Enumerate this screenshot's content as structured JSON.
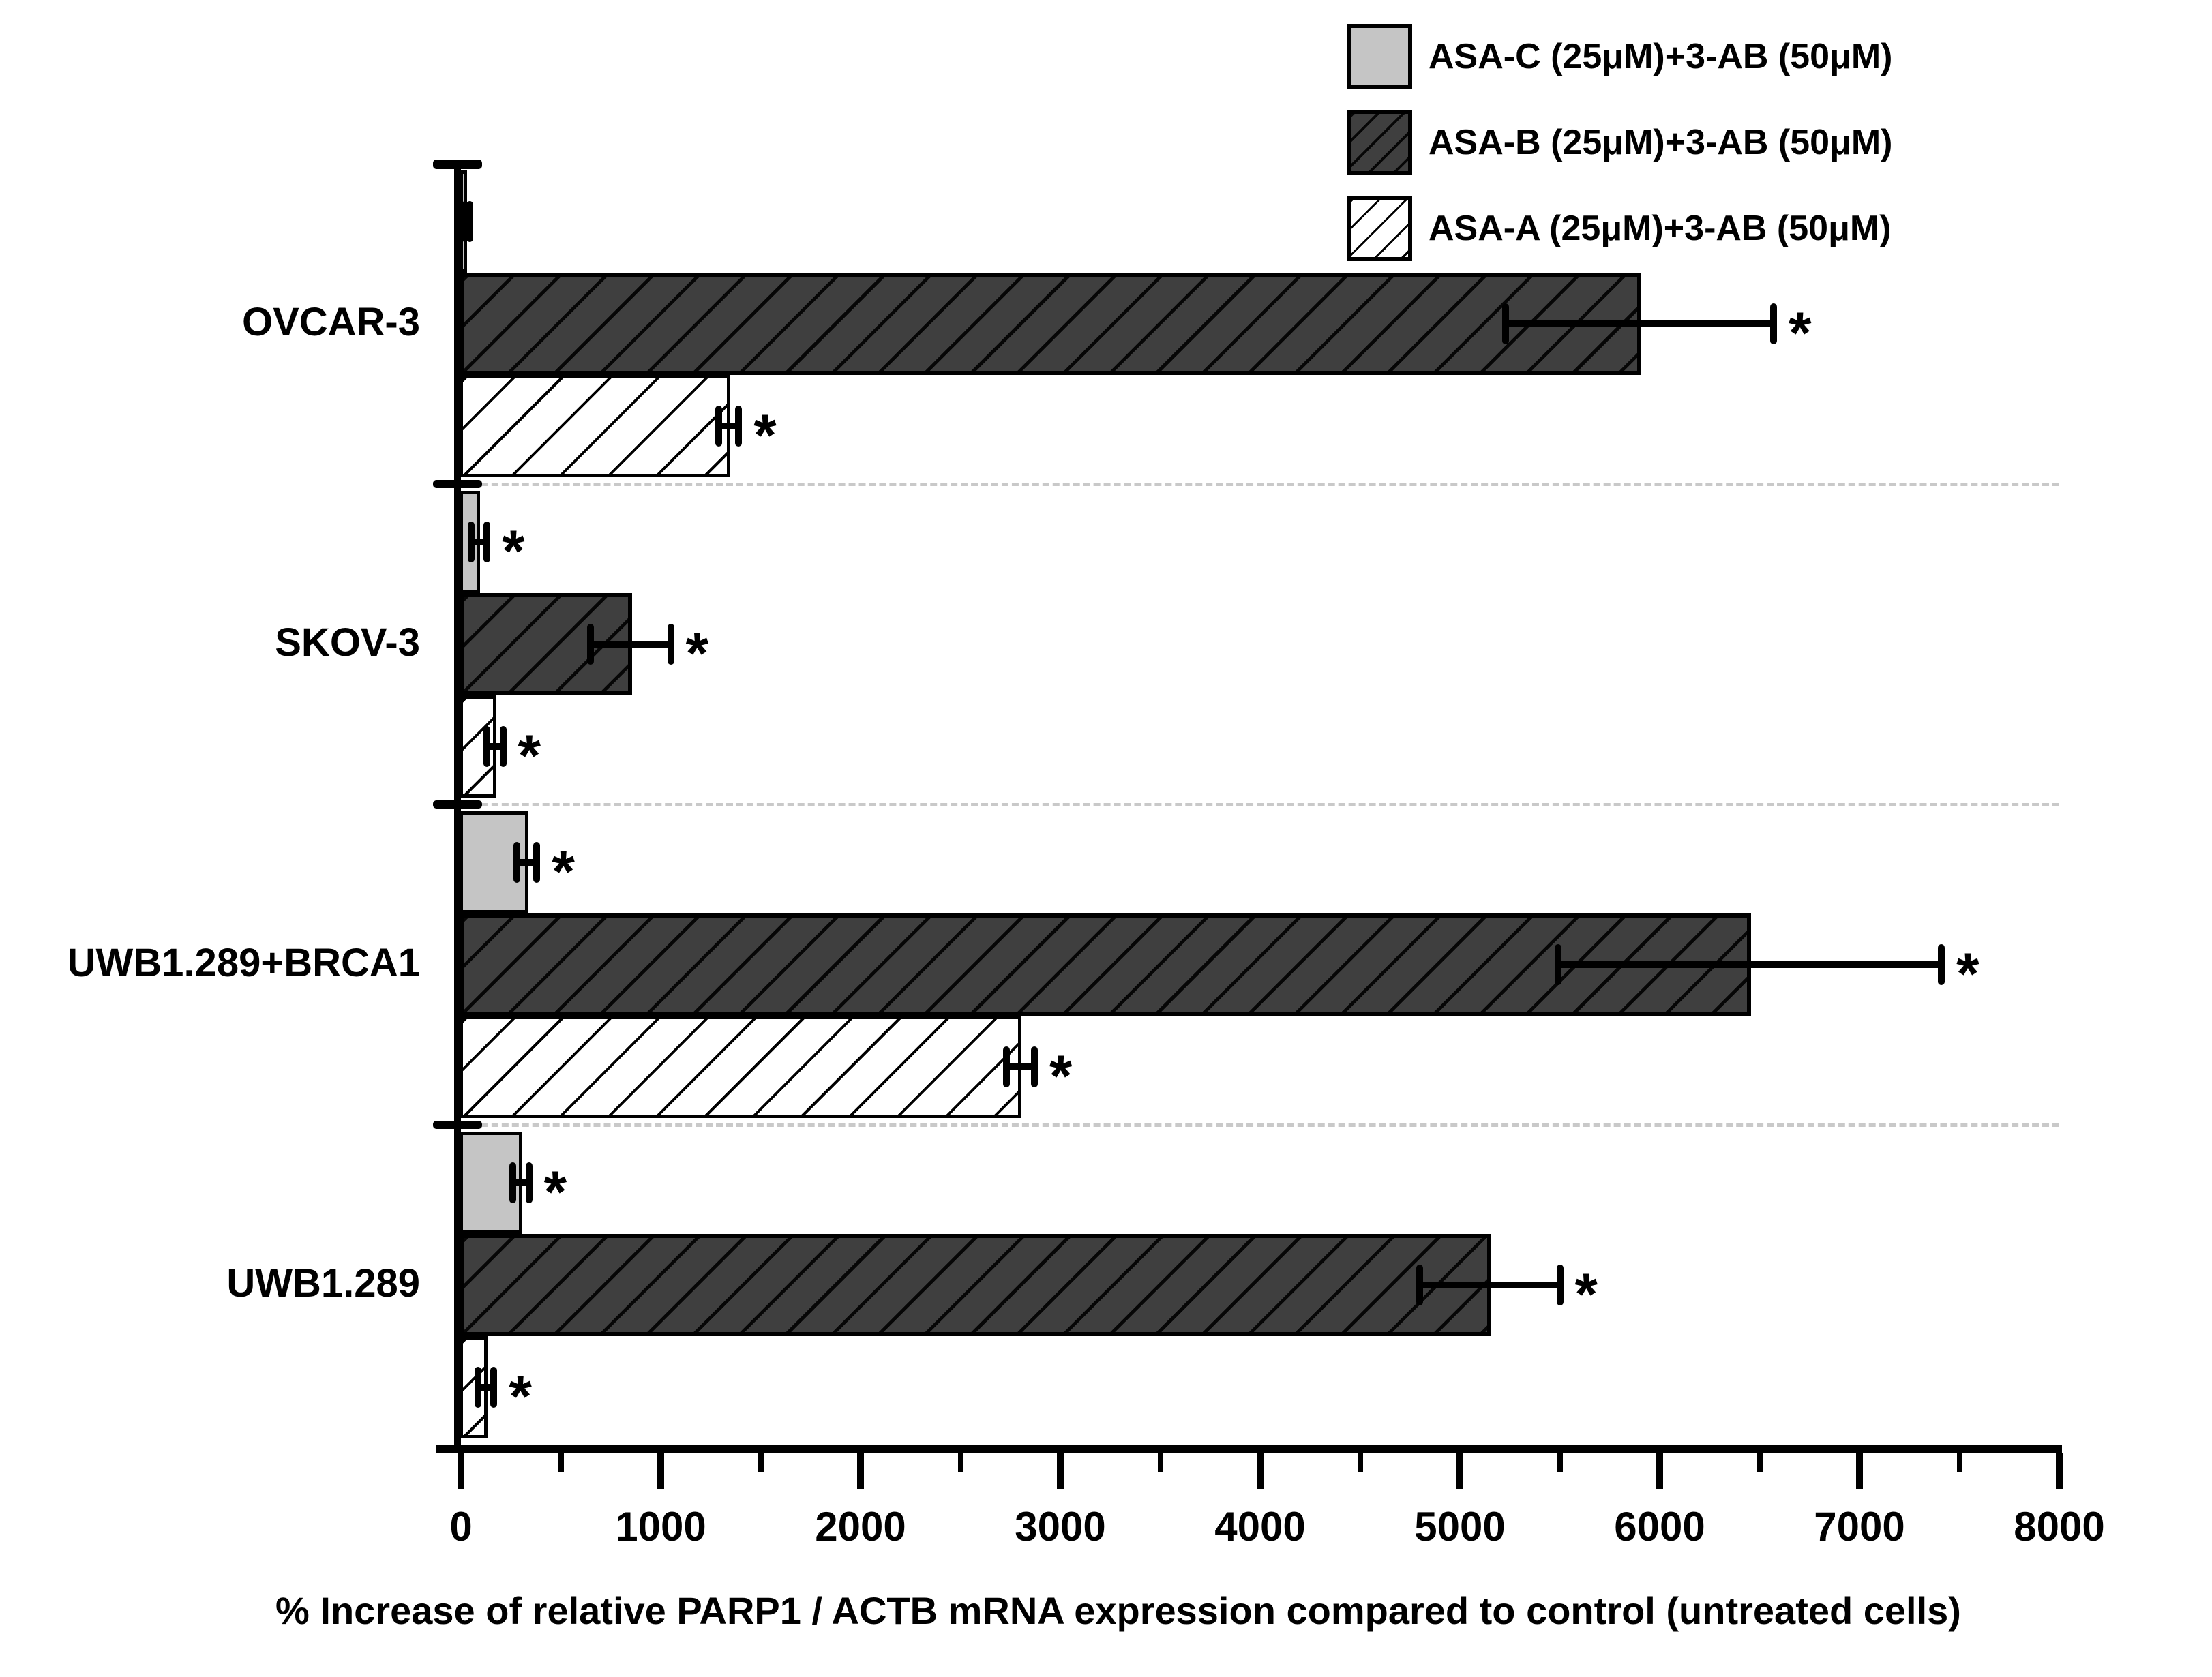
{
  "chart_data": {
    "type": "bar",
    "orientation": "horizontal",
    "xlabel": "% Increase of relative PARP1 / ACTB mRNA expression compared to control (untreated cells)",
    "xlim": [
      0,
      8000
    ],
    "x_major_ticks": [
      0,
      1000,
      2000,
      3000,
      4000,
      5000,
      6000,
      7000,
      8000
    ],
    "x_minor_tick_step": 500,
    "grid": "dashed horizontal group separators",
    "legend_position": "top-right",
    "significance_marker": "*",
    "categories": [
      "OVCAR-3",
      "SKOV-3",
      "UWB1.289+BRCA1",
      "UWB1.289"
    ],
    "series": [
      {
        "name": "ASA-C (25μM)+3-AB (50μM)",
        "style": "solid-light-gray",
        "values": [
          25,
          90,
          330,
          300
        ],
        "errors": [
          20,
          40,
          50,
          40
        ],
        "significant": [
          false,
          true,
          true,
          true
        ]
      },
      {
        "name": "ASA-B (25μM)+3-AB (50μM)",
        "style": "dark-gray-hatched",
        "values": [
          5900,
          850,
          6450,
          5150
        ],
        "errors": [
          670,
          200,
          960,
          350
        ],
        "significant": [
          true,
          true,
          true,
          true
        ]
      },
      {
        "name": "ASA-A (25μM)+3-AB (50μM)",
        "style": "white-hatched",
        "values": [
          1340,
          170,
          2800,
          125
        ],
        "errors": [
          50,
          40,
          70,
          40
        ],
        "significant": [
          true,
          true,
          true,
          true
        ]
      }
    ]
  },
  "colors": {
    "background": "#ffffff",
    "bar_light_gray": "#c5c5c5",
    "bar_dark_gray": "#3f3f3f",
    "bar_white": "#ffffff",
    "outline": "#000000",
    "separator_dash": "#c9c9c9"
  }
}
